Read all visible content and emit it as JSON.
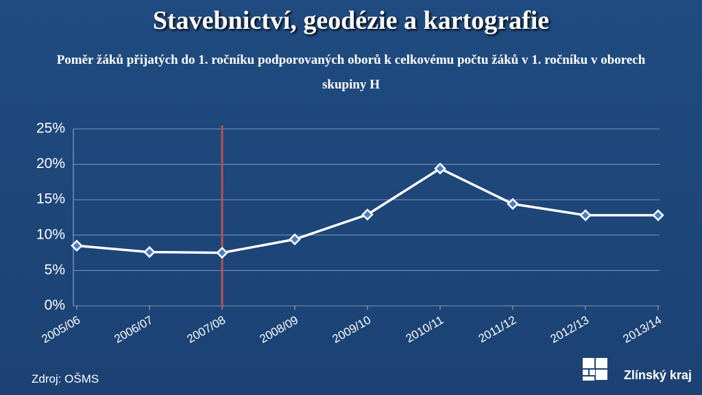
{
  "title": "Stavebnictví, geodézie a kartografie",
  "source": "Zdroj: OŠMS",
  "logo": "Zlínský kraj",
  "chart_data": {
    "type": "line",
    "subtitle": "Poměr žáků přijatých do 1. ročníku podporovaných oborů k celkovému počtu žáků v 1. ročníku v oborech skupiny H",
    "categories": [
      "2005/06",
      "2006/07",
      "2007/08",
      "2008/09",
      "2009/10",
      "2010/11",
      "2011/12",
      "2012/13",
      "2013/14"
    ],
    "values": [
      8.5,
      7.6,
      7.5,
      9.4,
      12.9,
      19.4,
      14.4,
      12.8,
      12.8
    ],
    "color": "#ffffff",
    "ylim": [
      0,
      25
    ],
    "yticks": [
      {
        "value": 0,
        "label": "0%"
      },
      {
        "value": 5,
        "label": "5%"
      },
      {
        "value": 10,
        "label": "10%"
      },
      {
        "value": 15,
        "label": "15%"
      },
      {
        "value": 20,
        "label": "20%"
      },
      {
        "value": 25,
        "label": "25%"
      }
    ],
    "grid": true
  }
}
